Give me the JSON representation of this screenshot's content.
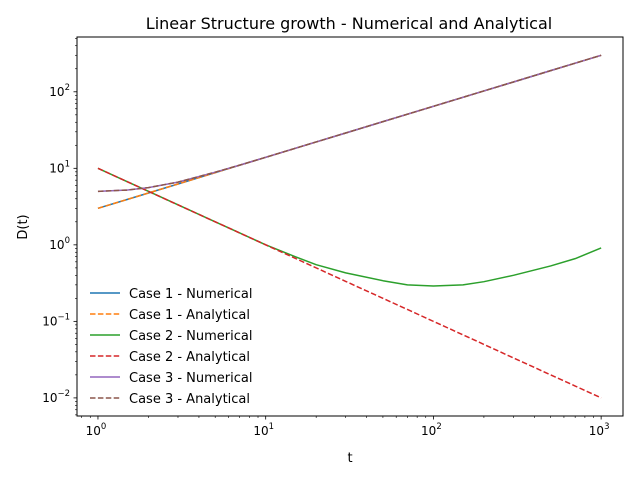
{
  "chart_data": {
    "type": "line",
    "title": "Linear Structure growth - Numerical and Analytical",
    "xlabel": "t",
    "ylabel": "D(t)",
    "xscale": "log",
    "yscale": "log",
    "xlim": [
      0.75,
      1350
    ],
    "ylim": [
      0.0058,
      520
    ],
    "xticks": [
      {
        "value": 1,
        "base": "10",
        "exp": "0"
      },
      {
        "value": 10,
        "base": "10",
        "exp": "1"
      },
      {
        "value": 100,
        "base": "10",
        "exp": "2"
      },
      {
        "value": 1000,
        "base": "10",
        "exp": "3"
      }
    ],
    "yticks": [
      {
        "value": 0.01,
        "base": "10",
        "exp": "−2"
      },
      {
        "value": 0.1,
        "base": "10",
        "exp": "−1"
      },
      {
        "value": 1,
        "base": "10",
        "exp": "0"
      },
      {
        "value": 10,
        "base": "10",
        "exp": "1"
      },
      {
        "value": 100,
        "base": "10",
        "exp": "2"
      }
    ],
    "grid": false,
    "legend": {
      "position": "lower-left",
      "frame": false
    },
    "x": [
      1,
      1.5,
      2,
      3,
      5,
      7,
      10,
      15,
      20,
      30,
      50,
      70,
      100,
      150,
      200,
      300,
      500,
      700,
      1000
    ],
    "series": [
      {
        "name": "Case 1 - Numerical",
        "color": "#1f77b4",
        "style": "solid",
        "values": [
          3.0,
          3.93,
          4.76,
          6.24,
          8.77,
          10.98,
          13.92,
          18.25,
          22.1,
          28.96,
          40.72,
          50.94,
          64.62,
          84.66,
          102.6,
          134.4,
          189.0,
          236.5,
          300.0
        ]
      },
      {
        "name": "Case 1 - Analytical",
        "color": "#ff7f0e",
        "style": "dashed",
        "values": [
          3.0,
          3.93,
          4.76,
          6.24,
          8.77,
          10.98,
          13.92,
          18.25,
          22.1,
          28.96,
          40.72,
          50.94,
          64.62,
          84.66,
          102.6,
          134.4,
          189.0,
          236.5,
          300.0
        ]
      },
      {
        "name": "Case 2 - Numerical",
        "color": "#2ca02c",
        "style": "solid",
        "values": [
          10.0,
          6.67,
          5.0,
          3.33,
          2.0,
          1.43,
          1.0,
          0.7,
          0.55,
          0.43,
          0.34,
          0.3,
          0.29,
          0.3,
          0.33,
          0.4,
          0.53,
          0.66,
          0.91
        ]
      },
      {
        "name": "Case 2 - Analytical",
        "color": "#d62728",
        "style": "dashed",
        "values": [
          10.0,
          6.67,
          5.0,
          3.33,
          2.0,
          1.43,
          1.0,
          0.667,
          0.5,
          0.333,
          0.2,
          0.143,
          0.1,
          0.0667,
          0.05,
          0.0333,
          0.02,
          0.0143,
          0.01
        ]
      },
      {
        "name": "Case 3 - Numerical",
        "color": "#9467bd",
        "style": "solid",
        "values": [
          5.0,
          5.2,
          5.6,
          6.6,
          8.9,
          11.0,
          13.92,
          18.25,
          22.1,
          28.96,
          40.72,
          50.94,
          64.62,
          84.66,
          102.6,
          134.4,
          189.0,
          236.5,
          300.0
        ]
      },
      {
        "name": "Case 3 - Analytical",
        "color": "#8c564b",
        "style": "dashed",
        "values": [
          5.0,
          5.2,
          5.6,
          6.6,
          8.9,
          11.0,
          13.92,
          18.25,
          22.1,
          28.96,
          40.72,
          50.94,
          64.62,
          84.66,
          102.6,
          134.4,
          189.0,
          236.5,
          300.0
        ]
      }
    ]
  }
}
